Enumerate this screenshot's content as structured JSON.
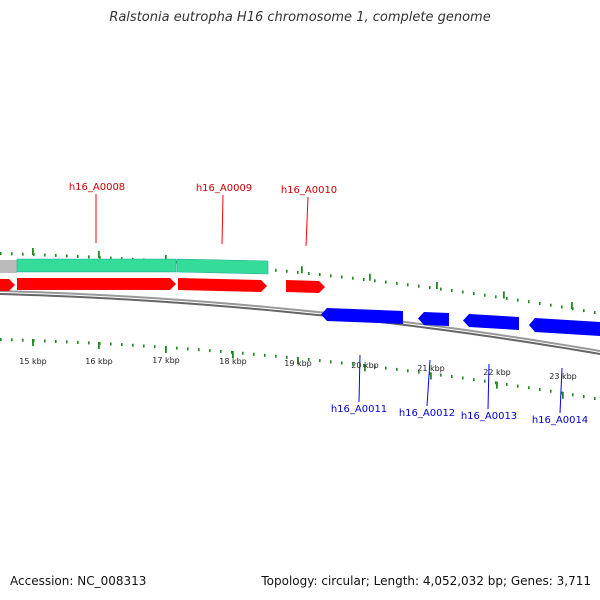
{
  "title": "Ralstonia eutropha H16 chromosome 1, complete genome",
  "footer": {
    "accession": "Accession: NC_008313",
    "summary": "Topology: circular; Length: 4,052,032 bp; Genes: 3,711"
  },
  "colors": {
    "forward_gene": "#ff0000",
    "reverse_gene": "#0000ff",
    "feature_band": "#33dd99",
    "ticks": "#228822",
    "backbone": "#888888"
  },
  "ticks": [
    {
      "label": "15 kbp"
    },
    {
      "label": "16 kbp"
    },
    {
      "label": "17 kbp"
    },
    {
      "label": "18 kbp"
    },
    {
      "label": "19 kbp"
    },
    {
      "label": "20 kbp"
    },
    {
      "label": "21 kbp"
    },
    {
      "label": "22 kbp"
    },
    {
      "label": "23 kbp"
    }
  ],
  "forward_genes": [
    {
      "label": "h16_A0008"
    },
    {
      "label": "h16_A0009"
    },
    {
      "label": "h16_A0010"
    }
  ],
  "reverse_genes": [
    {
      "label": "h16_A0011"
    },
    {
      "label": "h16_A0012"
    },
    {
      "label": "h16_A0013"
    },
    {
      "label": "h16_A0014"
    }
  ]
}
